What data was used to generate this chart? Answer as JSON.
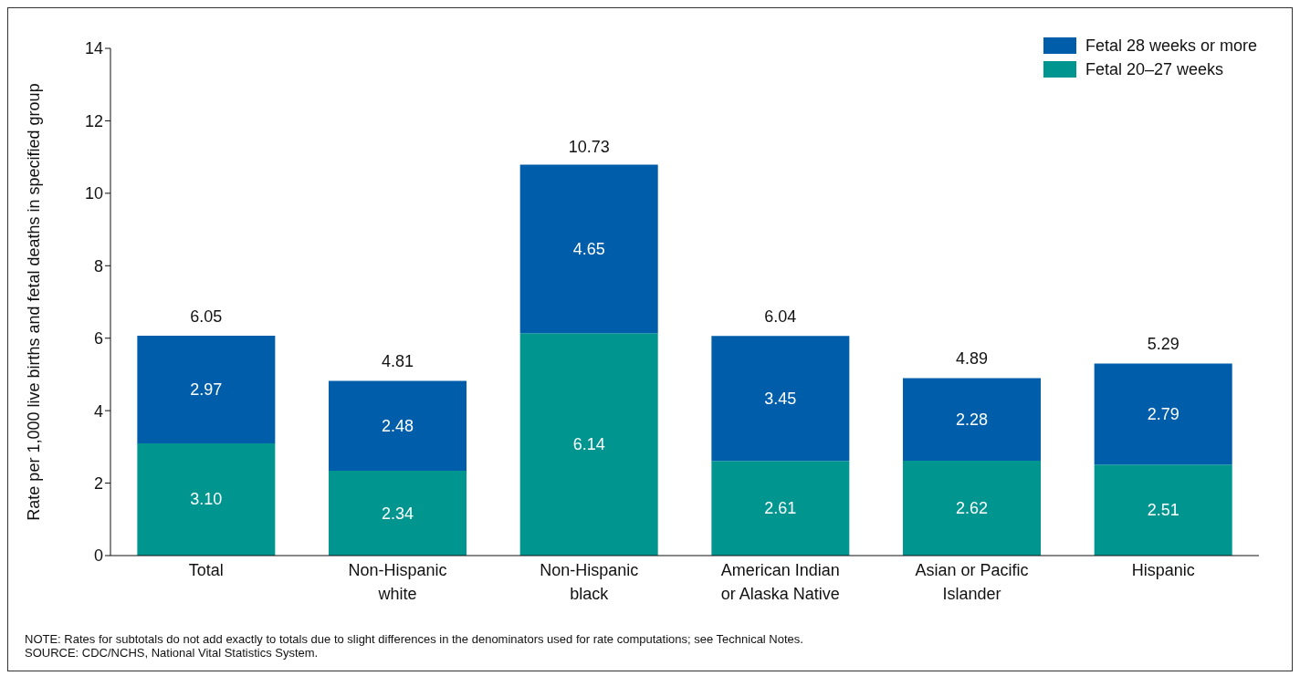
{
  "chart_data": {
    "type": "bar",
    "stacked": true,
    "categories": [
      "Total",
      "Non-Hispanic white",
      "Non-Hispanic black",
      "American Indian or Alaska Native",
      "Asian or Pacific Islander",
      "Hispanic"
    ],
    "series": [
      {
        "name": "Fetal 20–27 weeks",
        "color": "#00968f",
        "values": [
          3.1,
          2.34,
          6.14,
          2.61,
          2.62,
          2.51
        ],
        "value_labels": [
          "3.10",
          "2.34",
          "6.14",
          "2.61",
          "2.62",
          "2.51"
        ]
      },
      {
        "name": "Fetal 28 weeks or more",
        "color": "#005daa",
        "values": [
          2.97,
          2.48,
          4.65,
          3.45,
          2.28,
          2.79
        ],
        "value_labels": [
          "2.97",
          "2.48",
          "4.65",
          "3.45",
          "2.28",
          "2.79"
        ]
      }
    ],
    "ylabel": "Rate per 1,000 live births and fetal deaths in specified group",
    "ylim": [
      0,
      14
    ],
    "yticks": [
      0,
      2,
      4,
      6,
      8,
      10,
      12,
      14
    ],
    "grid": false,
    "legend": "top right",
    "annotations": [
      {
        "text": "6.05",
        "x": "Total",
        "y": 6.05
      },
      {
        "text": "4.81",
        "x": "Non-Hispanic white",
        "y": 4.81
      },
      {
        "text": "10.73",
        "x": "Non-Hispanic black",
        "y": 10.73
      },
      {
        "text": "6.04",
        "x": "American Indian or Alaska Native",
        "y": 6.04
      },
      {
        "text": "4.89",
        "x": "Asian or Pacific Islander",
        "y": 4.89
      },
      {
        "text": "5.29",
        "x": "Hispanic",
        "y": 5.29
      },
      "NOTE: Rates for subtotals do not add exactly to totals due to slight differences in the denominators used for rate computations; see Technical Notes.",
      "SOURCE: CDC/NCHS, National Vital Statistics System."
    ]
  }
}
